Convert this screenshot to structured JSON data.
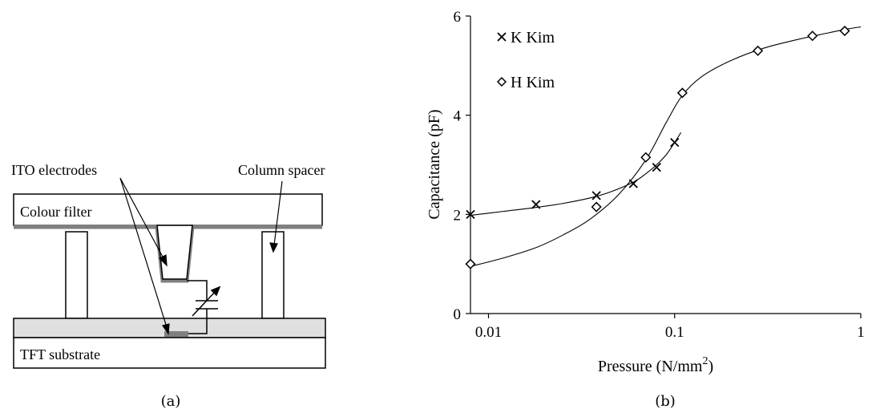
{
  "diagram": {
    "caption": "(a)",
    "labels": {
      "ito_electrodes": "ITO electrodes",
      "column_spacer": "Column spacer",
      "colour_filter": "Colour filter",
      "tft_substrate": "TFT substrate"
    }
  },
  "chart_data": {
    "type": "scatter",
    "caption": "(b)",
    "xlabel_main": "Pressure (N/mm",
    "xlabel_sup": "2",
    "xlabel_close": ")",
    "ylabel": "Capacitance (pF)",
    "x_scale": "log",
    "xlim": [
      0.008,
      1
    ],
    "ylim": [
      0,
      6
    ],
    "x_ticks": [
      0.01,
      0.1,
      1
    ],
    "x_tick_labels": [
      "0.01",
      "0.1",
      "1"
    ],
    "y_ticks": [
      0,
      2,
      4,
      6
    ],
    "y_tick_labels": [
      "0",
      "2",
      "4",
      "6"
    ],
    "grid": false,
    "legend_position": "top-left",
    "series": [
      {
        "name": "K Kim",
        "marker": "x",
        "x": [
          0.008,
          0.018,
          0.038,
          0.06,
          0.08,
          0.1
        ],
        "y": [
          2.0,
          2.2,
          2.38,
          2.62,
          2.95,
          3.45
        ],
        "fit_x": [
          0.008,
          0.012,
          0.018,
          0.025,
          0.035,
          0.045,
          0.06,
          0.07,
          0.08,
          0.09,
          0.1,
          0.108
        ],
        "fit_y": [
          1.98,
          2.06,
          2.14,
          2.22,
          2.33,
          2.45,
          2.65,
          2.82,
          3.0,
          3.2,
          3.45,
          3.65
        ]
      },
      {
        "name": "H Kim",
        "marker": "diamond",
        "x": [
          0.008,
          0.038,
          0.07,
          0.11,
          0.28,
          0.55,
          0.82
        ],
        "y": [
          1.0,
          2.15,
          3.15,
          4.45,
          5.3,
          5.6,
          5.7
        ],
        "fit_x": [
          0.008,
          0.012,
          0.018,
          0.025,
          0.035,
          0.05,
          0.07,
          0.09,
          0.11,
          0.14,
          0.2,
          0.3,
          0.45,
          0.65,
          0.85,
          1.0
        ],
        "fit_y": [
          0.95,
          1.12,
          1.33,
          1.58,
          1.9,
          2.4,
          3.1,
          3.85,
          4.4,
          4.78,
          5.1,
          5.35,
          5.52,
          5.65,
          5.74,
          5.78
        ]
      }
    ]
  }
}
